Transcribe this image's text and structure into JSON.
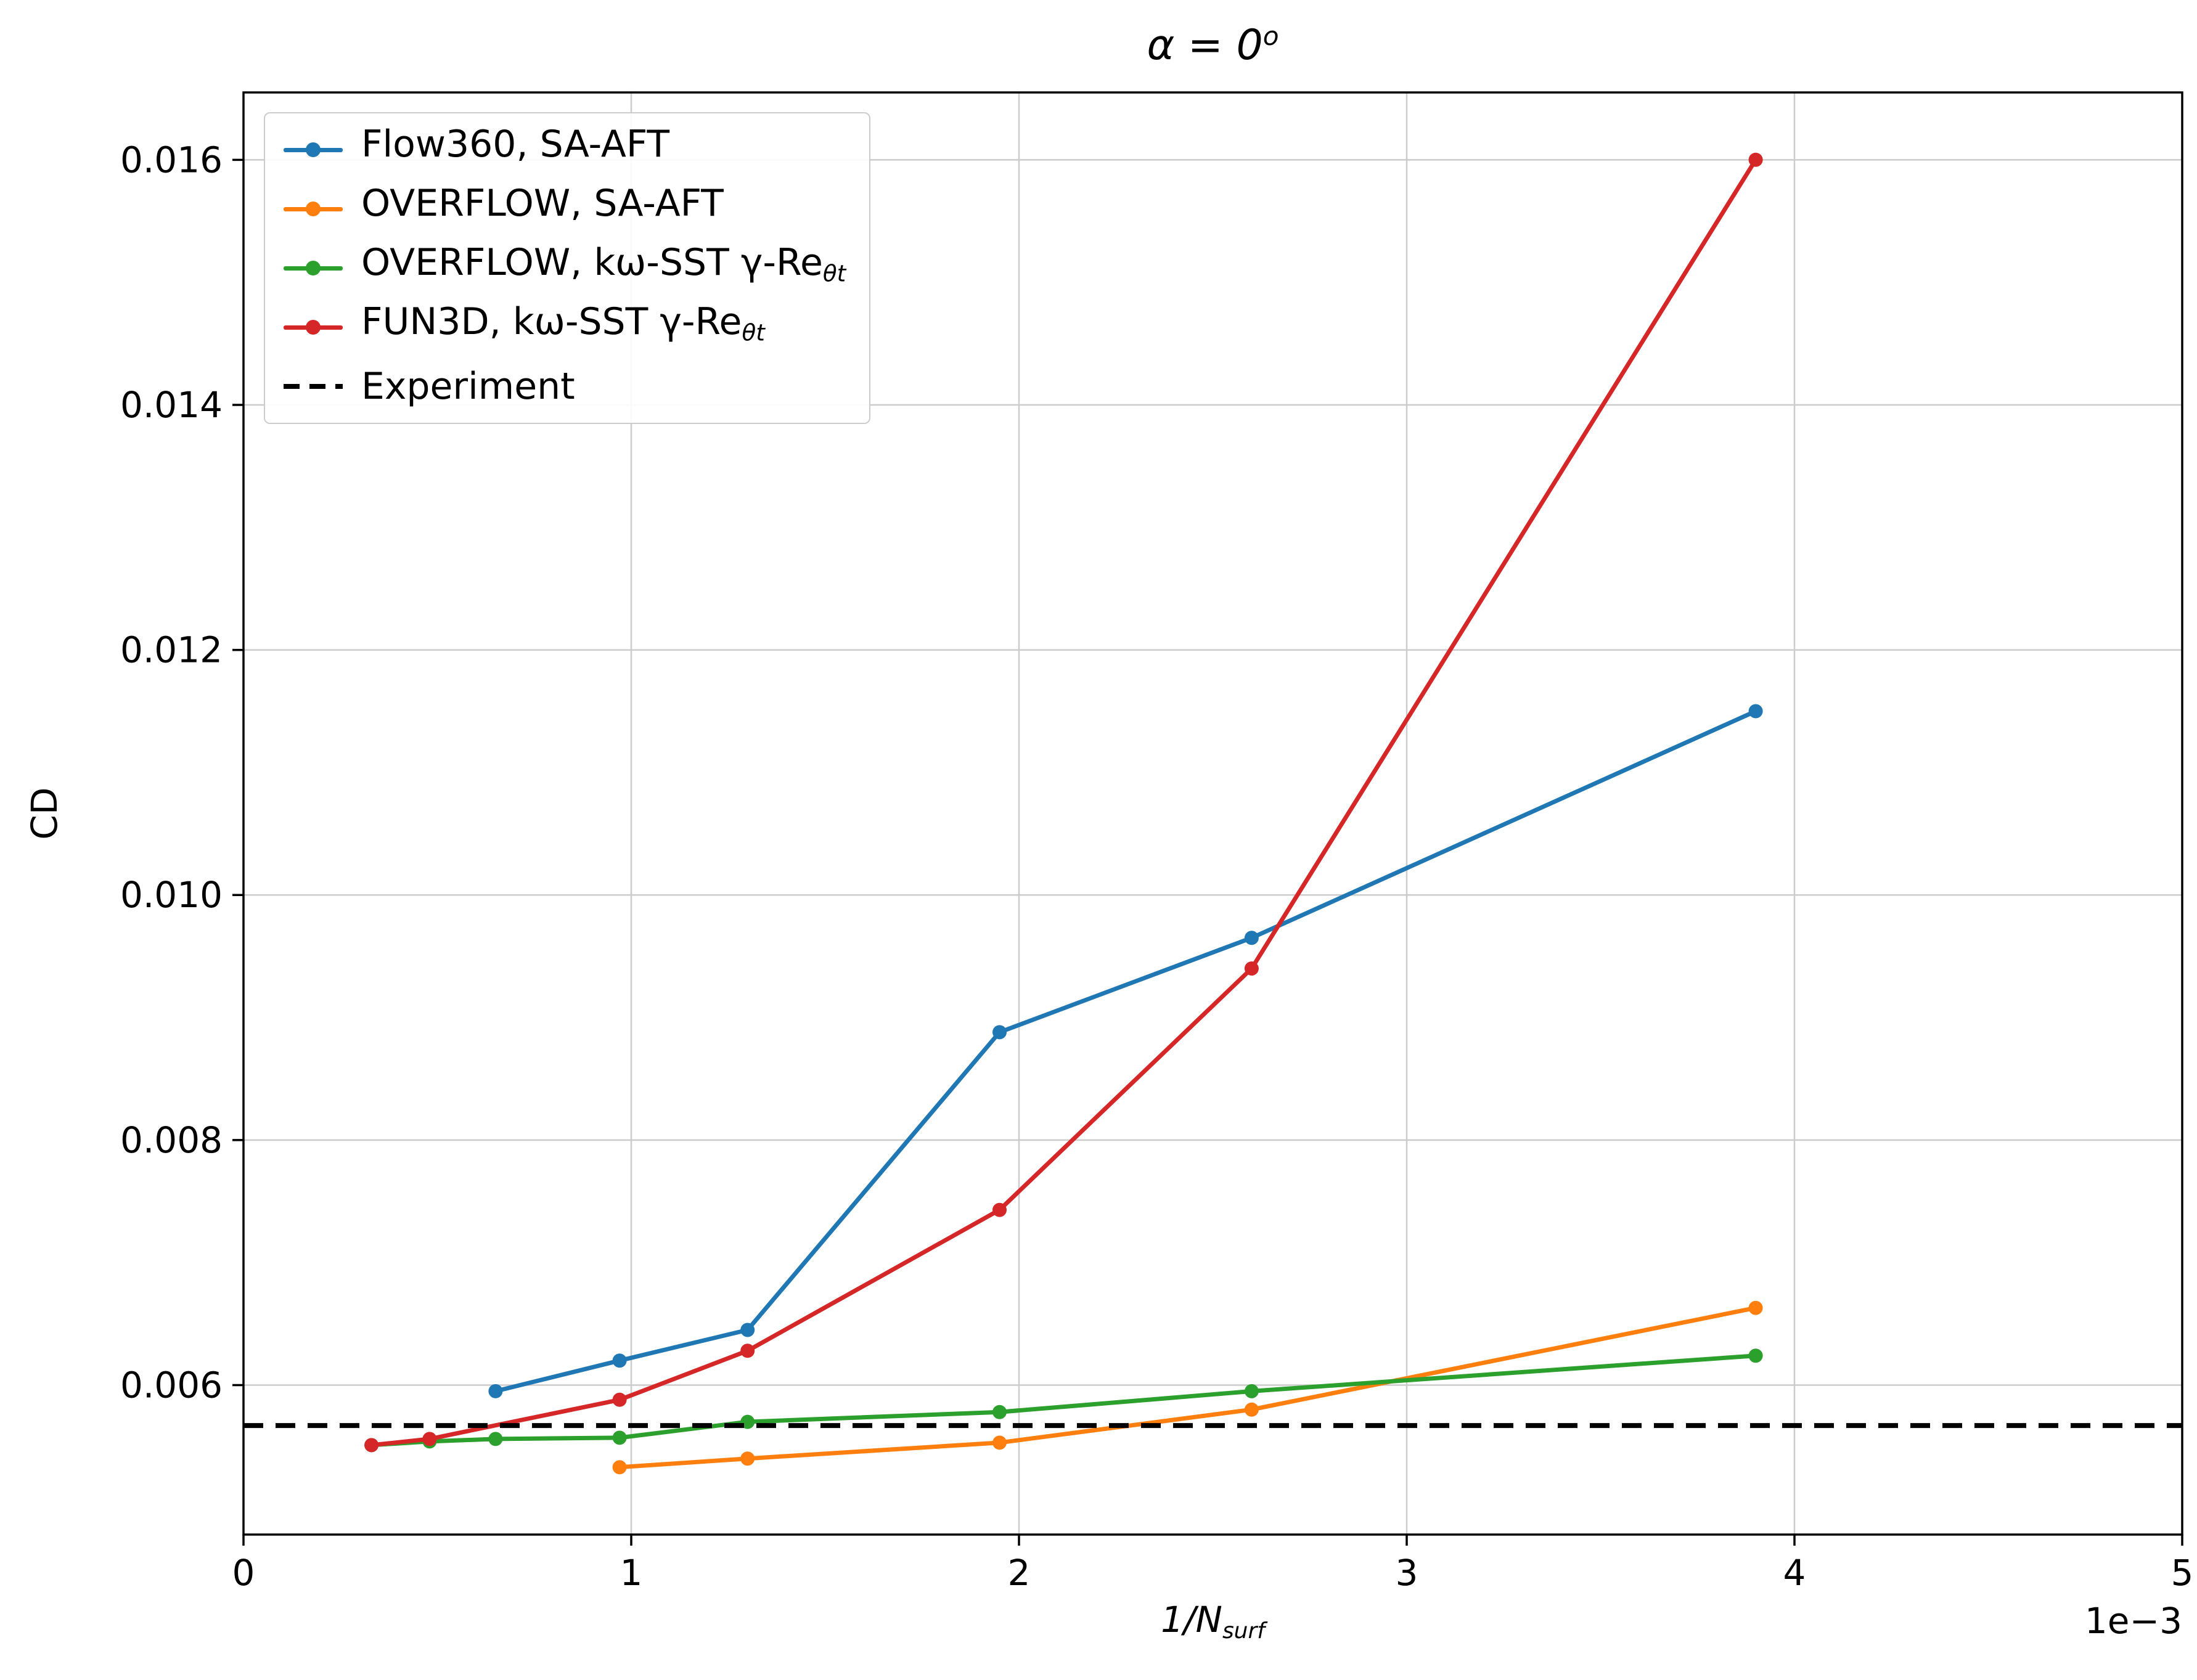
{
  "page": {
    "background_color": "#ffffff"
  },
  "chart_data": {
    "type": "line",
    "title": {
      "text": "α = 0",
      "superscript": "o"
    },
    "xlabel": {
      "text": "1/N",
      "subscript": "surf"
    },
    "ylabel": "CD",
    "axis_offset_label": "1e−3",
    "x_unit_scale": "1e-3",
    "xlim": [
      0,
      5
    ],
    "ylim": [
      0.00478,
      0.01655
    ],
    "xticks": [
      0,
      1,
      2,
      3,
      4,
      5
    ],
    "yticks": [
      0.006,
      0.008,
      0.01,
      0.012,
      0.014,
      0.016
    ],
    "grid": true,
    "grid_color": "#cccccc",
    "legend_position": "upper-left",
    "series": [
      {
        "key": "flow360-sa-aft",
        "label_main": "Flow360, SA-AFT",
        "label_sub": "",
        "color": "#1f77b4",
        "x": [
          0.65,
          0.97,
          1.3,
          1.95,
          2.6,
          3.9
        ],
        "y": [
          0.00595,
          0.0062,
          0.00645,
          0.00888,
          0.00965,
          0.0115
        ]
      },
      {
        "key": "overflow-sa-aft",
        "label_main": "OVERFLOW, SA-AFT",
        "label_sub": "",
        "color": "#ff7f0e",
        "x": [
          0.97,
          1.3,
          1.95,
          2.6,
          3.9
        ],
        "y": [
          0.00533,
          0.0054,
          0.00553,
          0.0058,
          0.00663
        ]
      },
      {
        "key": "overflow-kw-sst-gamma-re",
        "label_main": "OVERFLOW, kω-SST γ-Re",
        "label_sub": "θt",
        "color": "#2ca02c",
        "x": [
          0.33,
          0.48,
          0.65,
          0.97,
          1.3,
          1.95,
          2.6,
          3.9
        ],
        "y": [
          0.00551,
          0.00554,
          0.00556,
          0.00557,
          0.0057,
          0.00578,
          0.00595,
          0.00624
        ]
      },
      {
        "key": "fun3d-kw-sst-gamma-re",
        "label_main": "FUN3D, kω-SST γ-Re",
        "label_sub": "θt",
        "color": "#d62728",
        "x": [
          0.33,
          0.48,
          0.97,
          1.3,
          1.95,
          2.6,
          3.9
        ],
        "y": [
          0.00551,
          0.00556,
          0.00588,
          0.00628,
          0.00743,
          0.0094,
          0.016
        ]
      }
    ],
    "reference_line": {
      "key": "experiment",
      "label_main": "Experiment",
      "label_sub": "",
      "color": "#000000",
      "style": "dashed",
      "value": 0.00567
    }
  }
}
